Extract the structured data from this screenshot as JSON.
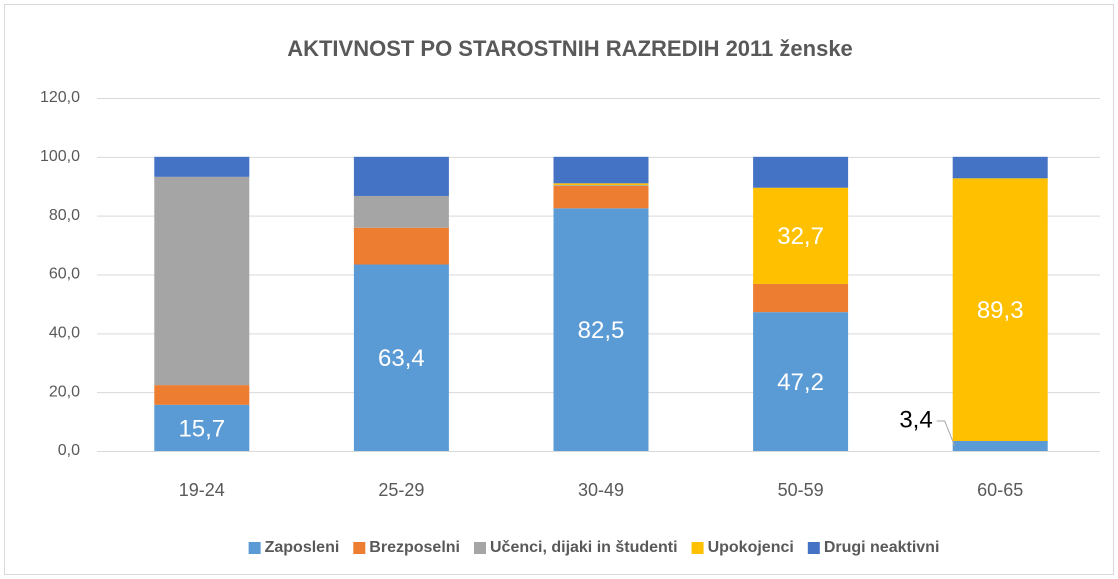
{
  "chart_data": {
    "type": "stacked_bar",
    "title": "AKTIVNOST PO STAROSTNIH RAZREDIH 2011 ženske",
    "categories": [
      "19-24",
      "25-29",
      "30-49",
      "50-59",
      "60-65"
    ],
    "series": [
      {
        "name": "Zaposleni",
        "color": "#5b9bd5",
        "values": [
          15.7,
          63.4,
          82.5,
          47.2,
          3.4
        ],
        "value_labels": [
          "15,7",
          "63,4",
          "82,5",
          "47,2",
          "3,4"
        ]
      },
      {
        "name": "Brezposelni",
        "color": "#ed7d31",
        "values": [
          6.7,
          12.5,
          7.6,
          9.6,
          0
        ]
      },
      {
        "name": "Učenci, dijaki in študenti",
        "color": "#a5a5a5",
        "values": [
          70.8,
          10.8,
          0.3,
          0,
          0
        ]
      },
      {
        "name": "Upokojenci",
        "color": "#ffc000",
        "values": [
          0,
          0,
          0.6,
          32.7,
          89.3
        ],
        "value_labels": [
          null,
          null,
          null,
          "32,7",
          "89,3"
        ]
      },
      {
        "name": "Drugi neaktivni",
        "color": "#4472c4",
        "values": [
          6.8,
          13.3,
          9.0,
          10.5,
          7.3
        ]
      }
    ],
    "ylim": [
      0,
      120
    ],
    "yticks": [
      {
        "value": 0,
        "label": "0,0"
      },
      {
        "value": 20,
        "label": "20,0"
      },
      {
        "value": 40,
        "label": "40,0"
      },
      {
        "value": 60,
        "label": "60,0"
      },
      {
        "value": 80,
        "label": "80,0"
      },
      {
        "value": 100,
        "label": "100,0"
      },
      {
        "value": 120,
        "label": "120,0"
      }
    ],
    "grid": true,
    "legend": "bottom"
  }
}
